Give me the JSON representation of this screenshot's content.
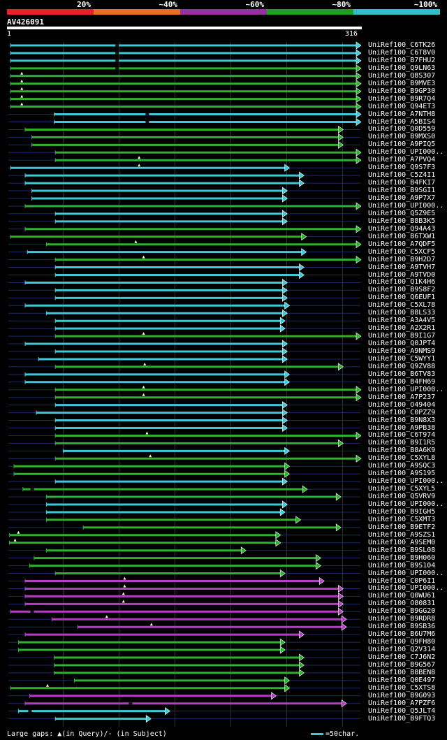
{
  "legend": {
    "segments": [
      {
        "label": "20%",
        "color": "#e8202a"
      },
      {
        "label": "~40%",
        "color": "#e87020"
      },
      {
        "label": "~60%",
        "color": "#9830a0"
      },
      {
        "label": "~80%",
        "color": "#20a020"
      },
      {
        "label": "~100%",
        "color": "#30c0c8"
      }
    ]
  },
  "query": {
    "title": "AV426091",
    "start_label": "1",
    "end_label": "316"
  },
  "colors": {
    "cyan": "#40c8d8",
    "green": "#30b030",
    "purple": "#b040c0",
    "track": "#1a2a6a",
    "grid": "#333333"
  },
  "hits": [
    {
      "name": "UniRef100_C6TK26",
      "start": 3,
      "end": 316,
      "color": "cyan",
      "gap": "sub",
      "gap_at": 98
    },
    {
      "name": "UniRef100_C6T8V0",
      "start": 3,
      "end": 316,
      "color": "cyan",
      "gap": "sub",
      "gap_at": 98
    },
    {
      "name": "UniRef100_B7FHU2",
      "start": 3,
      "end": 316,
      "color": "cyan",
      "gap": "sub",
      "gap_at": 98
    },
    {
      "name": "UniRef100_Q9LN63",
      "start": 3,
      "end": 316,
      "color": "green",
      "gap": "sub",
      "gap_at": 98
    },
    {
      "name": "UniRef100_Q8S307",
      "start": 3,
      "end": 316,
      "color": "green",
      "gap": "query",
      "gap_at": 13
    },
    {
      "name": "UniRef100_B9MVE3",
      "start": 3,
      "end": 316,
      "color": "green",
      "gap": "query",
      "gap_at": 13
    },
    {
      "name": "UniRef100_B9GP30",
      "start": 3,
      "end": 316,
      "color": "green",
      "gap": "query",
      "gap_at": 13
    },
    {
      "name": "UniRef100_B9R7Q4",
      "start": 3,
      "end": 316,
      "color": "green",
      "gap": "query",
      "gap_at": 13
    },
    {
      "name": "UniRef100_Q94ET3",
      "start": 3,
      "end": 316,
      "color": "green",
      "gap": "query",
      "gap_at": 13
    },
    {
      "name": "UniRef100_A7NTH8",
      "start": 42,
      "end": 316,
      "color": "cyan",
      "gap": "sub",
      "gap_at": 125
    },
    {
      "name": "UniRef100_A5BIS4",
      "start": 42,
      "end": 316,
      "color": "cyan",
      "gap": "sub",
      "gap_at": 125
    },
    {
      "name": "UniRef100_Q0D559",
      "start": 16,
      "end": 300,
      "color": "green",
      "gap": "",
      "gap_at": 0
    },
    {
      "name": "UniRef100_B9MXS0",
      "start": 22,
      "end": 300,
      "color": "green",
      "gap": "",
      "gap_at": 0
    },
    {
      "name": "UniRef100_A9PIQ5",
      "start": 22,
      "end": 300,
      "color": "green",
      "gap": "",
      "gap_at": 0
    },
    {
      "name": "UniRef100_UPI000..",
      "start": 43,
      "end": 316,
      "color": "green",
      "gap": "",
      "gap_at": 0
    },
    {
      "name": "UniRef100_A7PVQ4",
      "start": 43,
      "end": 316,
      "color": "green",
      "gap": "query",
      "gap_at": 118
    },
    {
      "name": "UniRef100_Q9S7F3",
      "start": 3,
      "end": 252,
      "color": "cyan",
      "gap": "query",
      "gap_at": 118
    },
    {
      "name": "UniRef100_C5Z4I1",
      "start": 16,
      "end": 265,
      "color": "cyan",
      "gap": "",
      "gap_at": 0
    },
    {
      "name": "UniRef100_B4FKI7",
      "start": 16,
      "end": 265,
      "color": "cyan",
      "gap": "",
      "gap_at": 0
    },
    {
      "name": "UniRef100_B9SGI1",
      "start": 22,
      "end": 250,
      "color": "cyan",
      "gap": "",
      "gap_at": 0
    },
    {
      "name": "UniRef100_A9P7X7",
      "start": 22,
      "end": 250,
      "color": "cyan",
      "gap": "",
      "gap_at": 0
    },
    {
      "name": "UniRef100_UPI000..",
      "start": 16,
      "end": 316,
      "color": "green",
      "gap": "",
      "gap_at": 0
    },
    {
      "name": "UniRef100_Q5Z9E5",
      "start": 43,
      "end": 250,
      "color": "cyan",
      "gap": "",
      "gap_at": 0
    },
    {
      "name": "UniRef100_B8B3K5",
      "start": 43,
      "end": 250,
      "color": "cyan",
      "gap": "",
      "gap_at": 0
    },
    {
      "name": "UniRef100_Q94A43",
      "start": 16,
      "end": 316,
      "color": "green",
      "gap": "",
      "gap_at": 0
    },
    {
      "name": "UniRef100_B6TXW1",
      "start": 3,
      "end": 267,
      "color": "green",
      "gap": "",
      "gap_at": 0
    },
    {
      "name": "UniRef100_A7QDF5",
      "start": 35,
      "end": 316,
      "color": "green",
      "gap": "query",
      "gap_at": 115
    },
    {
      "name": "UniRef100_C5XCF5",
      "start": 18,
      "end": 267,
      "color": "cyan",
      "gap": "",
      "gap_at": 0
    },
    {
      "name": "UniRef100_B9H2D7",
      "start": 43,
      "end": 316,
      "color": "green",
      "gap": "query",
      "gap_at": 122
    },
    {
      "name": "UniRef100_A9TVH7",
      "start": 43,
      "end": 265,
      "color": "cyan",
      "gap": "",
      "gap_at": 0
    },
    {
      "name": "UniRef100_A9TVD0",
      "start": 43,
      "end": 265,
      "color": "cyan",
      "gap": "",
      "gap_at": 0
    },
    {
      "name": "UniRef100_Q1K4H6",
      "start": 16,
      "end": 250,
      "color": "cyan",
      "gap": "",
      "gap_at": 0
    },
    {
      "name": "UniRef100_B9S8F2",
      "start": 43,
      "end": 250,
      "color": "cyan",
      "gap": "",
      "gap_at": 0
    },
    {
      "name": "UniRef100_Q6EUF1",
      "start": 43,
      "end": 250,
      "color": "cyan",
      "gap": "",
      "gap_at": 0
    },
    {
      "name": "UniRef100_C5XL78",
      "start": 16,
      "end": 252,
      "color": "cyan",
      "gap": "",
      "gap_at": 0
    },
    {
      "name": "UniRef100_B8LS33",
      "start": 35,
      "end": 250,
      "color": "cyan",
      "gap": "",
      "gap_at": 0
    },
    {
      "name": "UniRef100_A3A4V5",
      "start": 43,
      "end": 248,
      "color": "cyan",
      "gap": "",
      "gap_at": 0
    },
    {
      "name": "UniRef100_A2X2R1",
      "start": 43,
      "end": 248,
      "color": "cyan",
      "gap": "",
      "gap_at": 0
    },
    {
      "name": "UniRef100_B9I1G7",
      "start": 43,
      "end": 316,
      "color": "green",
      "gap": "query",
      "gap_at": 122
    },
    {
      "name": "UniRef100_Q0JPT4",
      "start": 16,
      "end": 250,
      "color": "cyan",
      "gap": "",
      "gap_at": 0
    },
    {
      "name": "UniRef100_A9NMS9",
      "start": 43,
      "end": 250,
      "color": "cyan",
      "gap": "",
      "gap_at": 0
    },
    {
      "name": "UniRef100_C5WYY1",
      "start": 28,
      "end": 250,
      "color": "cyan",
      "gap": "",
      "gap_at": 0
    },
    {
      "name": "UniRef100_Q9ZV88",
      "start": 43,
      "end": 300,
      "color": "green",
      "gap": "query",
      "gap_at": 123
    },
    {
      "name": "UniRef100_B6TV83",
      "start": 16,
      "end": 252,
      "color": "cyan",
      "gap": "",
      "gap_at": 0
    },
    {
      "name": "UniRef100_B4FH69",
      "start": 16,
      "end": 252,
      "color": "cyan",
      "gap": "",
      "gap_at": 0
    },
    {
      "name": "UniRef100_UPI000..",
      "start": 43,
      "end": 316,
      "color": "green",
      "gap": "query",
      "gap_at": 122
    },
    {
      "name": "UniRef100_A7P237",
      "start": 43,
      "end": 316,
      "color": "green",
      "gap": "query",
      "gap_at": 122
    },
    {
      "name": "UniRef100_O49404",
      "start": 43,
      "end": 250,
      "color": "cyan",
      "gap": "",
      "gap_at": 0
    },
    {
      "name": "UniRef100_C0PZZ9",
      "start": 26,
      "end": 250,
      "color": "cyan",
      "gap": "",
      "gap_at": 0
    },
    {
      "name": "UniRef100_B9N8X3",
      "start": 43,
      "end": 250,
      "color": "cyan",
      "gap": "",
      "gap_at": 0
    },
    {
      "name": "UniRef100_A9PB38",
      "start": 43,
      "end": 250,
      "color": "cyan",
      "gap": "",
      "gap_at": 0
    },
    {
      "name": "UniRef100_C6T974",
      "start": 43,
      "end": 316,
      "color": "green",
      "gap": "query",
      "gap_at": 125
    },
    {
      "name": "UniRef100_B9I1R5",
      "start": 43,
      "end": 300,
      "color": "green",
      "gap": "",
      "gap_at": 0
    },
    {
      "name": "UniRef100_B8A6K9",
      "start": 50,
      "end": 252,
      "color": "cyan",
      "gap": "",
      "gap_at": 0
    },
    {
      "name": "UniRef100_C5XYL8",
      "start": 43,
      "end": 316,
      "color": "green",
      "gap": "query",
      "gap_at": 128
    },
    {
      "name": "UniRef100_A9SQC3",
      "start": 6,
      "end": 252,
      "color": "green",
      "gap": "",
      "gap_at": 0
    },
    {
      "name": "UniRef100_A9S195",
      "start": 6,
      "end": 252,
      "color": "green",
      "gap": "",
      "gap_at": 0
    },
    {
      "name": "UniRef100_UPI000..",
      "start": 43,
      "end": 250,
      "color": "cyan",
      "gap": "",
      "gap_at": 0
    },
    {
      "name": "UniRef100_C5XYL5",
      "start": 14,
      "end": 268,
      "color": "green",
      "gap": "sub",
      "gap_at": 22
    },
    {
      "name": "UniRef100_Q5VRV9",
      "start": 35,
      "end": 298,
      "color": "green",
      "gap": "",
      "gap_at": 0
    },
    {
      "name": "UniRef100_UPI000..",
      "start": 35,
      "end": 250,
      "color": "cyan",
      "gap": "",
      "gap_at": 0
    },
    {
      "name": "UniRef100_B9IGH5",
      "start": 35,
      "end": 248,
      "color": "cyan",
      "gap": "",
      "gap_at": 0
    },
    {
      "name": "UniRef100_C5XMT3",
      "start": 35,
      "end": 262,
      "color": "green",
      "gap": "",
      "gap_at": 0
    },
    {
      "name": "UniRef100_B9ETF2",
      "start": 68,
      "end": 298,
      "color": "green",
      "gap": "",
      "gap_at": 0
    },
    {
      "name": "UniRef100_A9SZS1",
      "start": 2,
      "end": 244,
      "color": "green",
      "gap": "query",
      "gap_at": 10
    },
    {
      "name": "UniRef100_A9SEM0",
      "start": 2,
      "end": 244,
      "color": "green",
      "gap": "query",
      "gap_at": 7
    },
    {
      "name": "UniRef100_B9SL08",
      "start": 35,
      "end": 213,
      "color": "green",
      "gap": "",
      "gap_at": 0
    },
    {
      "name": "UniRef100_B9H060",
      "start": 24,
      "end": 280,
      "color": "green",
      "gap": "",
      "gap_at": 0
    },
    {
      "name": "UniRef100_B9S104",
      "start": 20,
      "end": 280,
      "color": "green",
      "gap": "",
      "gap_at": 0
    },
    {
      "name": "UniRef100_UPI000..",
      "start": 43,
      "end": 248,
      "color": "green",
      "gap": "",
      "gap_at": 0
    },
    {
      "name": "UniRef100_C0P6I1",
      "start": 16,
      "end": 283,
      "color": "purple",
      "gap": "query",
      "gap_at": 105
    },
    {
      "name": "UniRef100_UPI000..",
      "start": 16,
      "end": 300,
      "color": "purple",
      "gap": "query",
      "gap_at": 105
    },
    {
      "name": "UniRef100_Q0WU61",
      "start": 16,
      "end": 300,
      "color": "purple",
      "gap": "query",
      "gap_at": 104
    },
    {
      "name": "UniRef100_O80831",
      "start": 16,
      "end": 300,
      "color": "purple",
      "gap": "query",
      "gap_at": 104
    },
    {
      "name": "UniRef100_B9GG20",
      "start": 3,
      "end": 300,
      "color": "purple",
      "gap": "sub",
      "gap_at": 22
    },
    {
      "name": "UniRef100_B9RDR8",
      "start": 40,
      "end": 303,
      "color": "purple",
      "gap": "query",
      "gap_at": 89
    },
    {
      "name": "UniRef100_B9SB36",
      "start": 63,
      "end": 303,
      "color": "purple",
      "gap": "query",
      "gap_at": 129
    },
    {
      "name": "UniRef100_B6U7M6",
      "start": 16,
      "end": 265,
      "color": "purple",
      "gap": "",
      "gap_at": 0
    },
    {
      "name": "UniRef100_Q9FH80",
      "start": 10,
      "end": 248,
      "color": "green",
      "gap": "",
      "gap_at": 0
    },
    {
      "name": "UniRef100_Q2V314",
      "start": 10,
      "end": 248,
      "color": "green",
      "gap": "",
      "gap_at": 0
    },
    {
      "name": "UniRef100_C7J6N2",
      "start": 42,
      "end": 265,
      "color": "green",
      "gap": "",
      "gap_at": 0
    },
    {
      "name": "UniRef100_B9G567",
      "start": 42,
      "end": 265,
      "color": "green",
      "gap": "",
      "gap_at": 0
    },
    {
      "name": "UniRef100_B8BEN8",
      "start": 42,
      "end": 265,
      "color": "green",
      "gap": "",
      "gap_at": 0
    },
    {
      "name": "UniRef100_Q0E497",
      "start": 60,
      "end": 252,
      "color": "green",
      "gap": "",
      "gap_at": 0
    },
    {
      "name": "UniRef100_C5XTS8",
      "start": 3,
      "end": 252,
      "color": "green",
      "gap": "query",
      "gap_at": 36
    },
    {
      "name": "UniRef100_B9G093",
      "start": 20,
      "end": 240,
      "color": "purple",
      "gap": "",
      "gap_at": 0
    },
    {
      "name": "UniRef100_A7PZF6",
      "start": 16,
      "end": 303,
      "color": "purple",
      "gap": "sub",
      "gap_at": 110
    },
    {
      "name": "UniRef100_Q5JLT4",
      "start": 10,
      "end": 145,
      "color": "cyan",
      "gap": "sub",
      "gap_at": 20
    },
    {
      "name": "UniRef100_B9FTQ3",
      "start": 43,
      "end": 128,
      "color": "cyan",
      "gap": "",
      "gap_at": 0
    }
  ],
  "footer": {
    "text": "Large gaps: ▲(in Query)/- (in Subject)",
    "scale_text": "=50char."
  }
}
